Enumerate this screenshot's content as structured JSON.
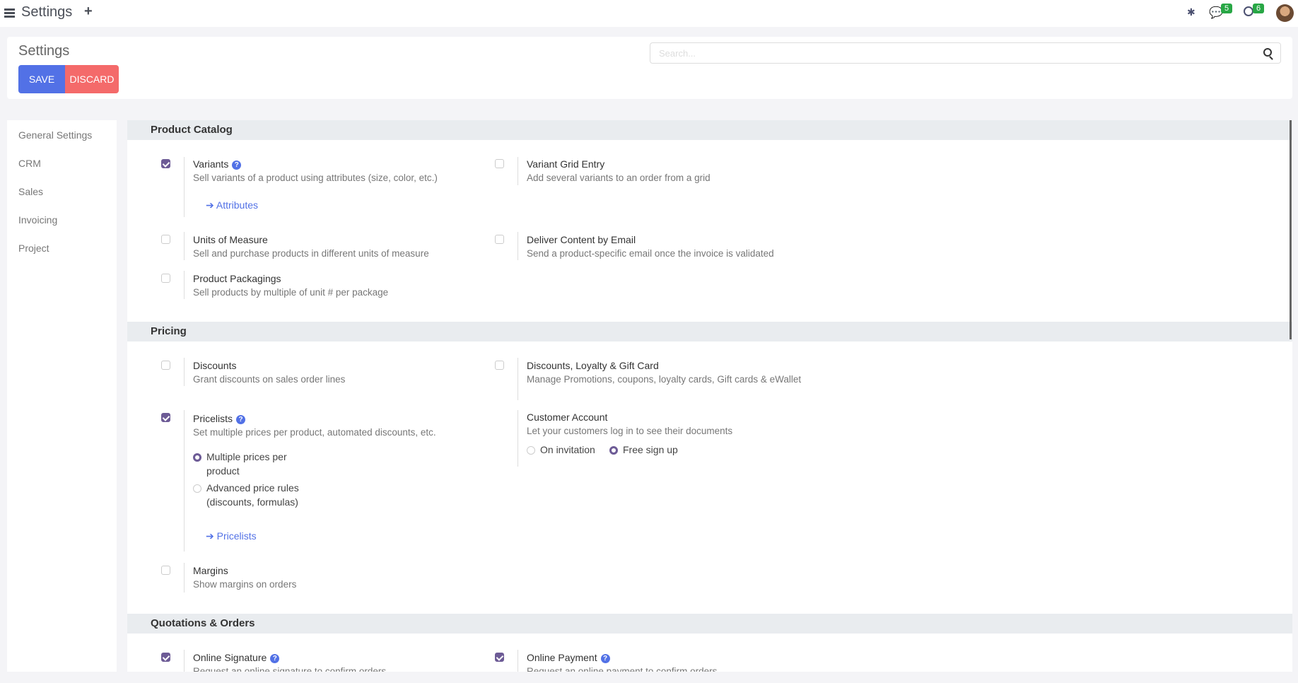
{
  "topbar": {
    "title": "Settings",
    "messages_count": "5",
    "activities_count": "6"
  },
  "panel": {
    "title": "Settings",
    "save": "SAVE",
    "discard": "DISCARD",
    "search_placeholder": "Search..."
  },
  "sidebar": [
    "General Settings",
    "CRM",
    "Sales",
    "Invoicing",
    "Project"
  ],
  "sections": [
    "Product Catalog",
    "Pricing",
    "Quotations & Orders"
  ],
  "settings": {
    "variants": {
      "title": "Variants",
      "desc": "Sell variants of a product using attributes (size, color, etc.)",
      "link": "Attributes",
      "checked": true
    },
    "variant_grid": {
      "title": "Variant Grid Entry",
      "desc": "Add several variants to an order from a grid",
      "checked": false
    },
    "uom": {
      "title": "Units of Measure",
      "desc": "Sell and purchase products in different units of measure",
      "checked": false
    },
    "deliver_email": {
      "title": "Deliver Content by Email",
      "desc": "Send a product-specific email once the invoice is validated",
      "checked": false
    },
    "packagings": {
      "title": "Product Packagings",
      "desc": "Sell products by multiple of unit # per package",
      "checked": false
    },
    "discounts": {
      "title": "Discounts",
      "desc": "Grant discounts on sales order lines",
      "checked": false
    },
    "loyalty": {
      "title": "Discounts, Loyalty & Gift Card",
      "desc": "Manage Promotions, coupons, loyalty cards, Gift cards & eWallet",
      "checked": false
    },
    "pricelists": {
      "title": "Pricelists",
      "desc": "Set multiple prices per product, automated discounts, etc.",
      "options": [
        "Multiple prices per product",
        "Advanced price rules (discounts, formulas)"
      ],
      "selected": "Multiple prices per product",
      "link": "Pricelists",
      "checked": true
    },
    "customer_account": {
      "title": "Customer Account",
      "desc": "Let your customers log in to see their documents",
      "options": [
        "On invitation",
        "Free sign up"
      ],
      "selected": "Free sign up"
    },
    "margins": {
      "title": "Margins",
      "desc": "Show margins on orders",
      "checked": false
    },
    "online_signature": {
      "title": "Online Signature",
      "desc": "Request an online signature to confirm orders",
      "checked": true
    },
    "online_payment": {
      "title": "Online Payment",
      "desc": "Request an online payment to confirm orders",
      "checked": true
    }
  },
  "colors": {
    "primary": "#5271e6",
    "discard": "#f46a6a",
    "checkbox": "#6d5b96",
    "badge": "#28a745"
  }
}
